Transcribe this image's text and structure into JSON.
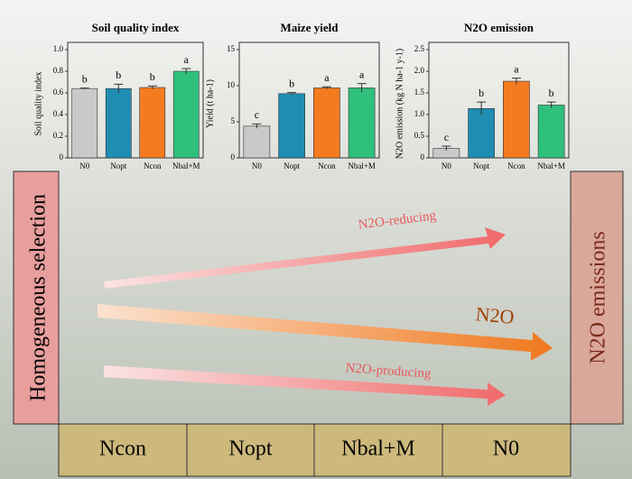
{
  "chart_data": [
    {
      "type": "bar",
      "title": "Soil quality index",
      "ylabel": "Soil quality index",
      "categories": [
        "N0",
        "Nopt",
        "Ncon",
        "Nbal+M"
      ],
      "colors": [
        "#c9c9c9",
        "#1f8db2",
        "#f47b20",
        "#2fc07c"
      ],
      "values": [
        0.64,
        0.64,
        0.65,
        0.8
      ],
      "errors": [
        0.005,
        0.04,
        0.015,
        0.025
      ],
      "significance": [
        "b",
        "b",
        "b",
        "a"
      ],
      "ylim": [
        0,
        1
      ],
      "yticks": [
        0,
        0.2,
        0.4,
        0.6,
        0.8,
        {
          "value": 1,
          "label": "1.0"
        }
      ]
    },
    {
      "type": "bar",
      "title": "Maize yield",
      "ylabel": "Yield (t ha-1)",
      "categories": [
        "N0",
        "Nopt",
        "Ncon",
        "Nbal+M"
      ],
      "colors": [
        "#c9c9c9",
        "#1f8db2",
        "#f47b20",
        "#2fc07c"
      ],
      "values": [
        4.4,
        8.9,
        9.7,
        9.7
      ],
      "errors": [
        0.3,
        0.15,
        0.15,
        0.6
      ],
      "significance": [
        "c",
        "b",
        "a",
        "a"
      ],
      "ylim": [
        0,
        15
      ],
      "yticks": [
        0,
        5,
        10,
        15
      ]
    },
    {
      "type": "bar",
      "title": "N2O emission",
      "ylabel": "N2O emission (kg N ha-1 y-1)",
      "categories": [
        "N0",
        "Nopt",
        "Ncon",
        "Nbal+M"
      ],
      "colors": [
        "#c9c9c9",
        "#1f8db2",
        "#f47b20",
        "#2fc07c"
      ],
      "values": [
        0.22,
        1.14,
        1.77,
        1.22
      ],
      "errors": [
        0.05,
        0.15,
        0.07,
        0.07
      ],
      "significance": [
        "c",
        "b",
        "a",
        "b"
      ],
      "ylim": [
        0,
        2.5
      ],
      "yticks": [
        0,
        0.5,
        {
          "value": 1,
          "label": "1.0"
        },
        1.5,
        {
          "value": 2,
          "label": "2.0"
        },
        2.5
      ]
    }
  ],
  "diagram": {
    "left_label": "Homogeneous selection",
    "right_label": "N2O emissions",
    "treatments": [
      "Ncon",
      "Nopt",
      "Nbal+M",
      "N0"
    ],
    "arrows": [
      "N2O-reducing",
      "N2O",
      "N2O-producing"
    ]
  }
}
